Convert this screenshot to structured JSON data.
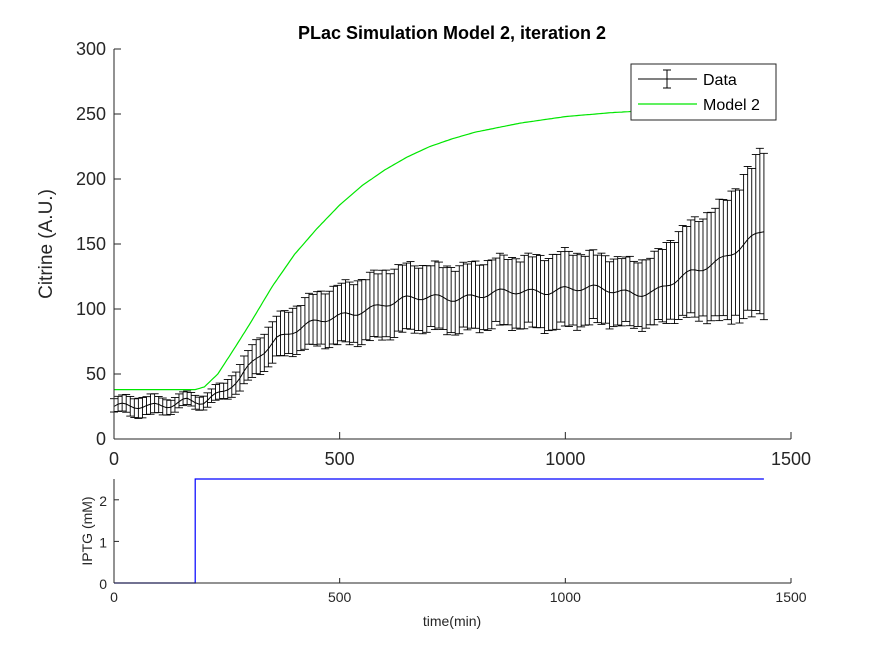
{
  "chart_data": [
    {
      "type": "line",
      "title": "PLac Simulation Model 2, iteration 2",
      "xlabel": "",
      "ylabel": "Citrine (A.U.)",
      "xlim": [
        0,
        1500
      ],
      "ylim": [
        0,
        300
      ],
      "xticks": [
        "0",
        "500",
        "1000",
        "1500"
      ],
      "yticks": [
        "0",
        "50",
        "100",
        "150",
        "200",
        "250",
        "300"
      ],
      "legend_position": "top-right",
      "grid": false,
      "series": [
        {
          "name": "Data",
          "color": "#000000",
          "error_bars": true,
          "x": [
            0,
            40,
            80,
            120,
            160,
            180,
            200,
            240,
            280,
            320,
            360,
            400,
            450,
            500,
            550,
            600,
            700,
            800,
            900,
            1000,
            1050,
            1100,
            1150,
            1200,
            1250,
            1300,
            1350,
            1400,
            1440
          ],
          "y": [
            25,
            24,
            24,
            27,
            31,
            30,
            29,
            34,
            46,
            65,
            78,
            84,
            89,
            94,
            100,
            104,
            109,
            110,
            113,
            116,
            115,
            114,
            113,
            114,
            122,
            130,
            140,
            152,
            160
          ],
          "err_low": [
            5,
            8,
            8,
            6,
            5,
            5,
            5,
            6,
            10,
            14,
            16,
            18,
            20,
            23,
            25,
            27,
            27,
            27,
            29,
            31,
            30,
            28,
            27,
            27,
            32,
            40,
            50,
            60,
            68
          ],
          "err_high": [
            6,
            8,
            8,
            6,
            6,
            6,
            6,
            7,
            11,
            15,
            18,
            20,
            23,
            25,
            27,
            28,
            26,
            27,
            28,
            30,
            28,
            27,
            27,
            30,
            38,
            42,
            46,
            56,
            68
          ]
        },
        {
          "name": "Model 2",
          "color": "#00e600",
          "x": [
            0,
            180,
            200,
            230,
            260,
            300,
            350,
            400,
            450,
            500,
            550,
            600,
            650,
            700,
            750,
            800,
            900,
            1000,
            1100,
            1200
          ],
          "y": [
            38,
            38,
            40,
            50,
            66,
            88,
            117,
            142,
            162,
            180,
            195,
            207,
            217,
            225,
            231,
            236,
            243,
            248,
            251,
            253
          ]
        }
      ]
    },
    {
      "type": "line",
      "title": "",
      "xlabel": "time(min)",
      "ylabel": "IPTG (mM)",
      "xlim": [
        0,
        1500
      ],
      "ylim": [
        0,
        2.5
      ],
      "xticks": [
        "0",
        "500",
        "1000",
        "1500"
      ],
      "yticks": [
        "0",
        "1",
        "2"
      ],
      "series": [
        {
          "name": "",
          "color": "#0000ff",
          "x": [
            0,
            180,
            180,
            1440
          ],
          "y": [
            0,
            0,
            2.5,
            2.5
          ]
        }
      ]
    }
  ]
}
